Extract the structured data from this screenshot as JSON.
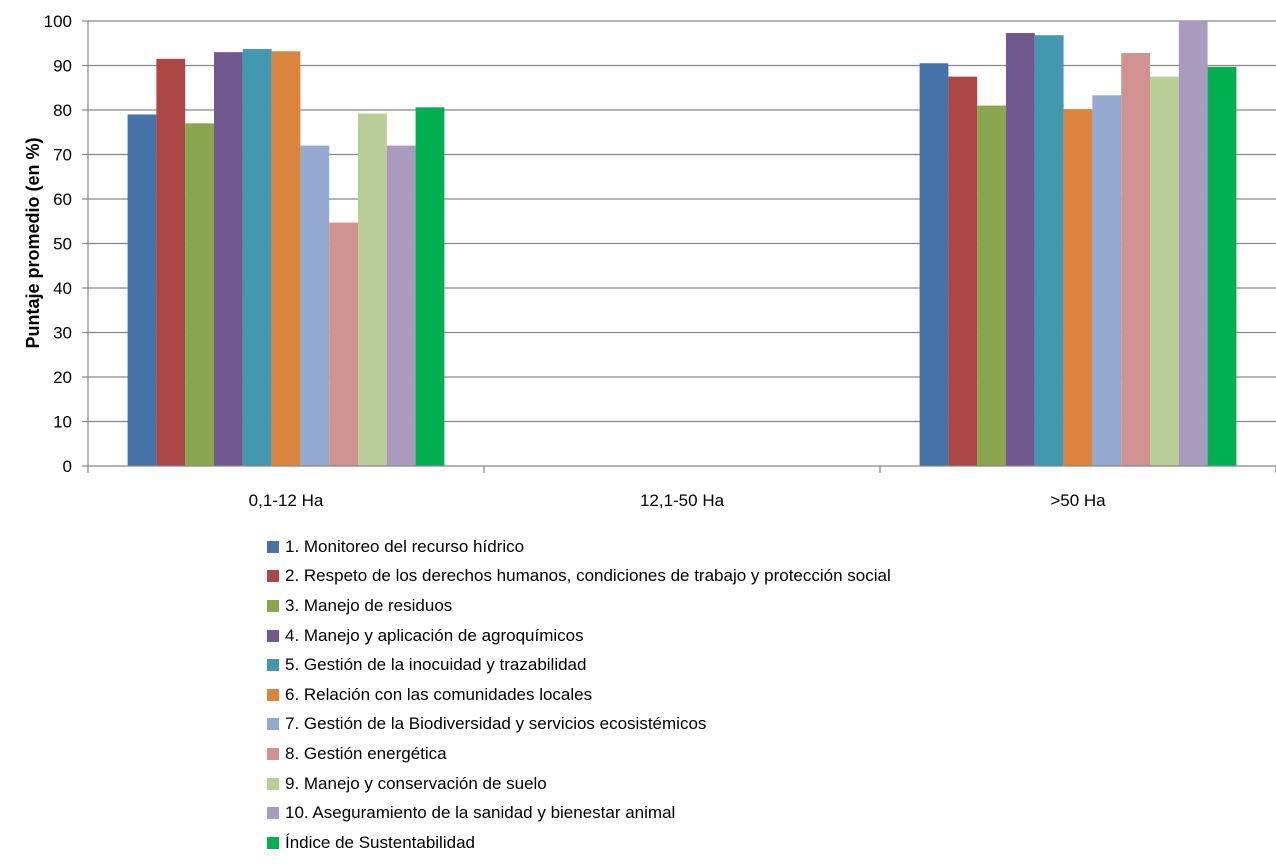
{
  "chart_data": {
    "type": "bar",
    "categories": [
      "0,1-12 Ha",
      "12,1-50 Ha",
      ">50 Ha"
    ],
    "ylabel": "Puntaje promedio (en %)",
    "xlabel": "",
    "title": "",
    "ylim": [
      0,
      100
    ],
    "yticks": [
      "0",
      "10",
      "20",
      "30",
      "40",
      "50",
      "60",
      "70",
      "80",
      "90",
      "100"
    ],
    "grid": true,
    "legend_position": "bottom",
    "series": [
      {
        "name": "1. Monitoreo del recurso hídrico",
        "color": "#4572A7",
        "values": [
          79,
          null,
          90.5
        ]
      },
      {
        "name": "2. Respeto de los derechos humanos, condiciones de trabajo y protección social",
        "color": "#AA4643",
        "values": [
          91.5,
          null,
          87.5
        ]
      },
      {
        "name": "3. Manejo de residuos",
        "color": "#89A54E",
        "values": [
          77,
          null,
          81
        ]
      },
      {
        "name": "4. Manejo y aplicación de agroquímicos",
        "color": "#71588F",
        "values": [
          93,
          null,
          97.3
        ]
      },
      {
        "name": "5. Gestión de la inocuidad y trazabilidad",
        "color": "#4198AF",
        "values": [
          93.7,
          null,
          96.8
        ]
      },
      {
        "name": "6. Relación con las comunidades locales",
        "color": "#DB843D",
        "values": [
          93.2,
          null,
          80.2
        ]
      },
      {
        "name": "7. Gestión de la Biodiversidad y servicios ecosistémicos",
        "color": "#93A9CF",
        "values": [
          72,
          null,
          83.3
        ]
      },
      {
        "name": "8. Gestión energética",
        "color": "#D19392",
        "values": [
          54.7,
          null,
          92.8
        ]
      },
      {
        "name": "9. Manejo y conservación de suelo",
        "color": "#B9CD96",
        "values": [
          79.2,
          null,
          87.5
        ]
      },
      {
        "name": "10. Aseguramiento de la sanidad y bienestar animal",
        "color": "#A99BBD",
        "values": [
          72,
          null,
          100
        ]
      },
      {
        "name": "Índice de Sustentabilidad",
        "color": "#00B050",
        "values": [
          80.6,
          null,
          89.7
        ]
      }
    ]
  }
}
